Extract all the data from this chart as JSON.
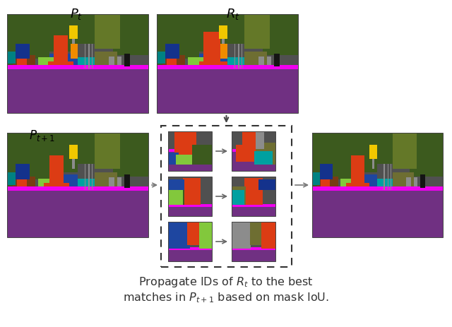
{
  "bg_color": "#ffffff",
  "title_line1": "Propagate IDs of $R_t$ to the best",
  "title_line2": "matches in $P_{t+1}$ based on mask IoU.",
  "label_Pt": "$P_t$",
  "label_Rt": "$R_t$",
  "label_Pt1": "$P_{t+1}$",
  "colors": {
    "purple_road": [
      112,
      48,
      130
    ],
    "dark_gray": [
      80,
      80,
      80
    ],
    "dark_green": [
      60,
      90,
      30
    ],
    "mid_green": [
      100,
      120,
      40
    ],
    "olive": [
      110,
      110,
      50
    ],
    "red_orange": [
      220,
      60,
      20
    ],
    "magenta": [
      240,
      0,
      240
    ],
    "teal": [
      0,
      160,
      160
    ],
    "blue": [
      30,
      70,
      160
    ],
    "brown": [
      120,
      60,
      20
    ],
    "lime": [
      130,
      200,
      60
    ],
    "yellow": [
      240,
      200,
      0
    ],
    "orange": [
      240,
      140,
      0
    ],
    "gray_obj": [
      140,
      140,
      140
    ],
    "black": [
      20,
      20,
      20
    ],
    "blue_dark": [
      20,
      50,
      140
    ],
    "teal_dark": [
      0,
      130,
      130
    ],
    "green_bright": [
      80,
      180,
      60
    ],
    "gray_light": [
      160,
      160,
      160
    ]
  },
  "layout": {
    "fig_w": 6.4,
    "fig_h": 4.63,
    "dpi": 100
  }
}
